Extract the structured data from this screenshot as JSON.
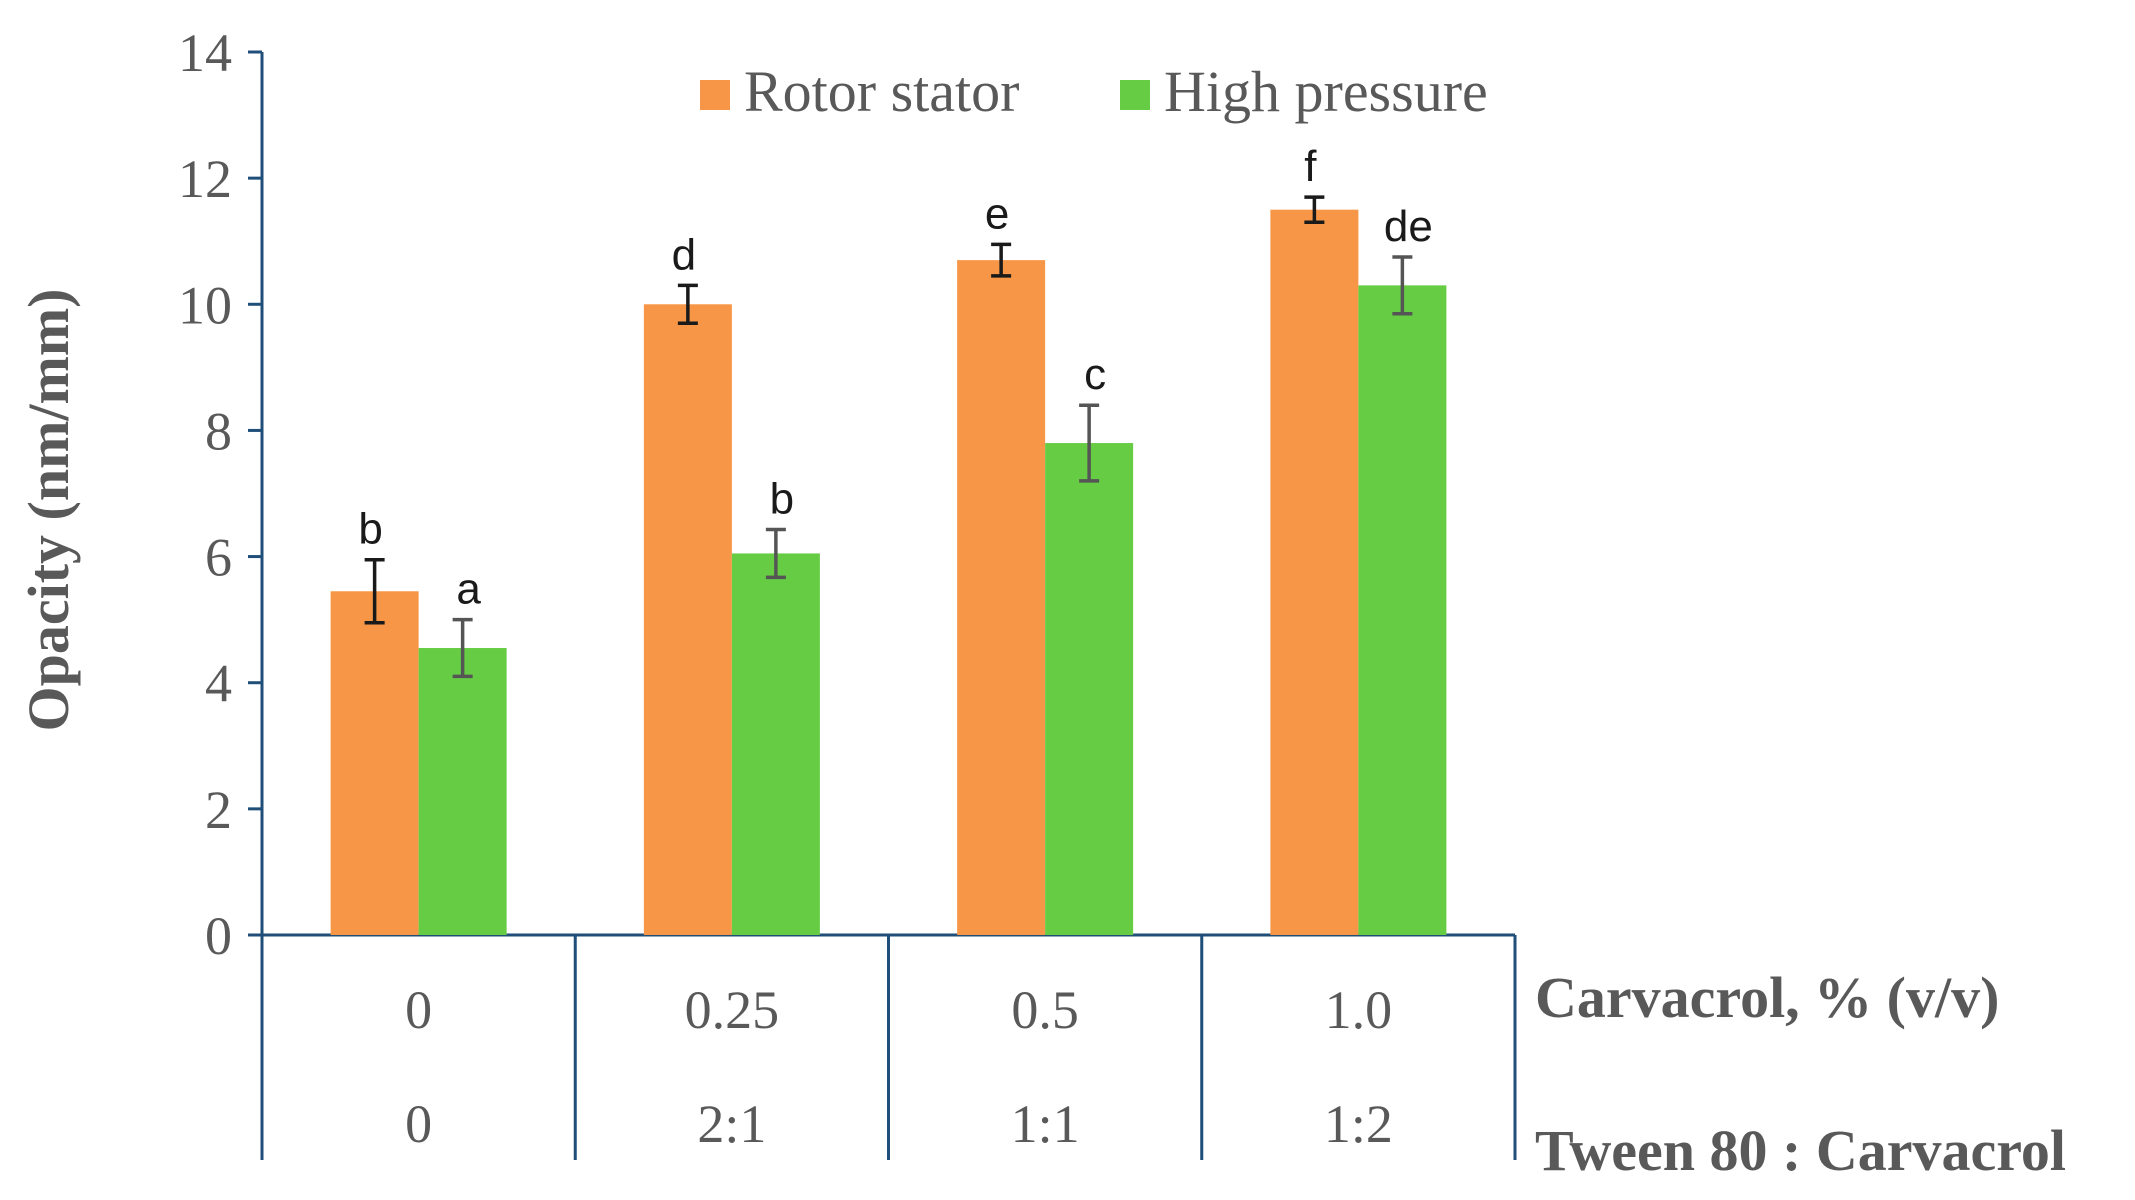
{
  "chart_data": {
    "type": "bar",
    "ylabel": "Opacity (nm/mm)",
    "ylim": [
      0,
      14
    ],
    "yticks": [
      "0",
      "2",
      "4",
      "6",
      "8",
      "10",
      "12",
      "14"
    ],
    "grid": false,
    "legend_position": "top",
    "categories": [
      "0",
      "0.25",
      "0.5",
      "1.0"
    ],
    "category_axis_label": "Carvacrol, % (v/v)",
    "secondary_categories": [
      "0",
      "2:1",
      "1:1",
      "1:2"
    ],
    "secondary_axis_label": "Tween 80 : Carvacrol",
    "series": [
      {
        "name": "Rotor stator",
        "color": "#F79646",
        "values": [
          5.45,
          10.0,
          10.7,
          11.5
        ],
        "errors": [
          0.5,
          0.3,
          0.25,
          0.2
        ],
        "significance": [
          "b",
          "d",
          "e",
          "f"
        ]
      },
      {
        "name": "High pressure",
        "color": "#66CC44",
        "values": [
          4.55,
          6.05,
          7.8,
          10.3
        ],
        "errors": [
          0.45,
          0.38,
          0.6,
          0.45
        ],
        "significance": [
          "a",
          "b",
          "c",
          "de"
        ]
      }
    ]
  }
}
